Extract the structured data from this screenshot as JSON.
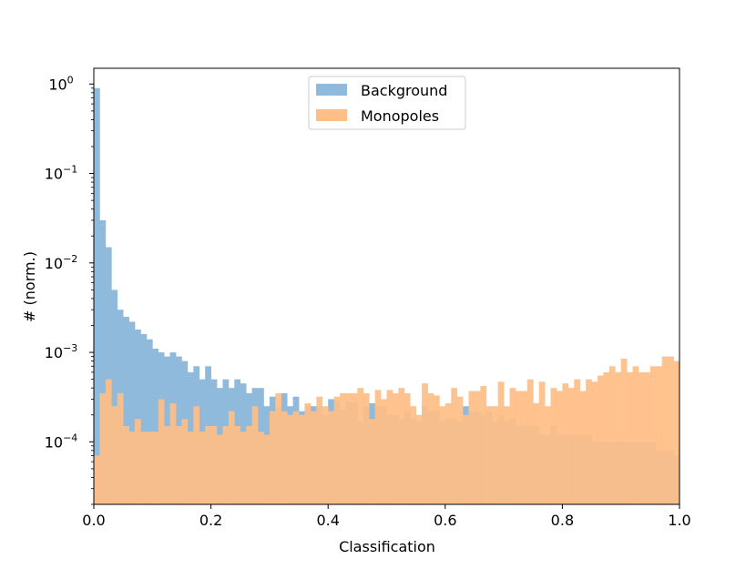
{
  "chart_data": {
    "type": "histogram",
    "xlabel": "Classification",
    "ylabel": "# (norm.)",
    "xlim": [
      0.0,
      1.0
    ],
    "ylim": [
      2e-05,
      1.5
    ],
    "yscale": "log",
    "x_ticks": [
      {
        "value": 0.0,
        "label": "0.0"
      },
      {
        "value": 0.2,
        "label": "0.2"
      },
      {
        "value": 0.4,
        "label": "0.4"
      },
      {
        "value": 0.6,
        "label": "0.6"
      },
      {
        "value": 0.8,
        "label": "0.8"
      },
      {
        "value": 1.0,
        "label": "1.0"
      }
    ],
    "y_ticks": [
      {
        "value": 1,
        "base": "10",
        "exp": "0"
      },
      {
        "value": 0.1,
        "base": "10",
        "exp": "−1"
      },
      {
        "value": 0.01,
        "base": "10",
        "exp": "−2"
      },
      {
        "value": 0.001,
        "base": "10",
        "exp": "−3"
      },
      {
        "value": 0.0001,
        "base": "10",
        "exp": "−4"
      }
    ],
    "bin_width": 0.01,
    "legend_position": "top-center",
    "series": [
      {
        "name": "Background",
        "color": "#8fbadb",
        "values": [
          0.9,
          0.03,
          0.015,
          0.005,
          0.003,
          0.0025,
          0.0022,
          0.0018,
          0.0016,
          0.0014,
          0.0011,
          0.001,
          0.0009,
          0.001,
          0.0009,
          0.0008,
          0.0006,
          0.0007,
          0.0005,
          0.0007,
          0.0005,
          0.0004,
          0.0005,
          0.0004,
          0.0005,
          0.00045,
          0.00035,
          0.0004,
          0.0004,
          0.00025,
          0.00032,
          0.00025,
          0.00035,
          0.00025,
          0.00032,
          0.00022,
          0.00025,
          0.00025,
          0.00025,
          0.0002,
          0.0003,
          0.00028,
          0.00023,
          0.00028,
          0.00028,
          0.00017,
          0.00025,
          0.00027,
          0.00025,
          0.00025,
          0.0002,
          0.0002,
          0.00018,
          0.00022,
          0.00018,
          0.00017,
          0.00025,
          0.00022,
          0.00022,
          0.00017,
          0.00018,
          0.00018,
          0.00017,
          0.00025,
          0.00022,
          0.00022,
          0.0002,
          0.00022,
          0.00017,
          0.0002,
          0.00017,
          0.00018,
          0.00015,
          0.00015,
          0.00015,
          0.00015,
          0.00012,
          0.00012,
          0.00015,
          0.00012,
          0.00012,
          0.00012,
          0.00012,
          0.00012,
          0.00012,
          0.0001,
          0.0001,
          0.0001,
          0.0001,
          0.0001,
          0.0001,
          0.0001,
          0.0001,
          0.0001,
          0.0001,
          0.0001,
          8e-05,
          8e-05,
          8e-05,
          7e-05
        ]
      },
      {
        "name": "Monopoles",
        "color": "#ffbe86",
        "values": [
          7e-05,
          0.00035,
          0.0005,
          0.00025,
          0.00035,
          0.00015,
          0.00013,
          0.00018,
          0.00013,
          0.00013,
          0.00013,
          0.0003,
          0.00015,
          0.00027,
          0.00015,
          0.00018,
          0.00013,
          0.00025,
          0.00013,
          0.00015,
          0.00015,
          0.00012,
          0.00015,
          0.00022,
          0.00015,
          0.00013,
          0.00015,
          0.00025,
          0.00013,
          0.00012,
          0.00022,
          0.00035,
          0.00022,
          0.0002,
          0.00022,
          0.0002,
          0.00027,
          0.00022,
          0.00032,
          0.00025,
          0.00022,
          0.00032,
          0.00035,
          0.00035,
          0.00035,
          0.0004,
          0.00035,
          0.00018,
          0.00038,
          0.0003,
          0.00038,
          0.00035,
          0.0004,
          0.00035,
          0.00025,
          0.0002,
          0.00045,
          0.00035,
          0.00033,
          0.00025,
          0.00027,
          0.0004,
          0.00032,
          0.0002,
          0.00037,
          0.00037,
          0.00042,
          0.00025,
          0.00025,
          0.00047,
          0.00025,
          0.0004,
          0.00037,
          0.00037,
          0.0005,
          0.00027,
          0.00047,
          0.00025,
          0.0004,
          0.00037,
          0.00045,
          0.0004,
          0.0005,
          0.00037,
          0.0005,
          0.00047,
          0.00055,
          0.0006,
          0.0007,
          0.0006,
          0.00085,
          0.0006,
          0.0007,
          0.0006,
          0.0006,
          0.0007,
          0.0007,
          0.0009,
          0.0009,
          0.0008
        ]
      }
    ]
  }
}
